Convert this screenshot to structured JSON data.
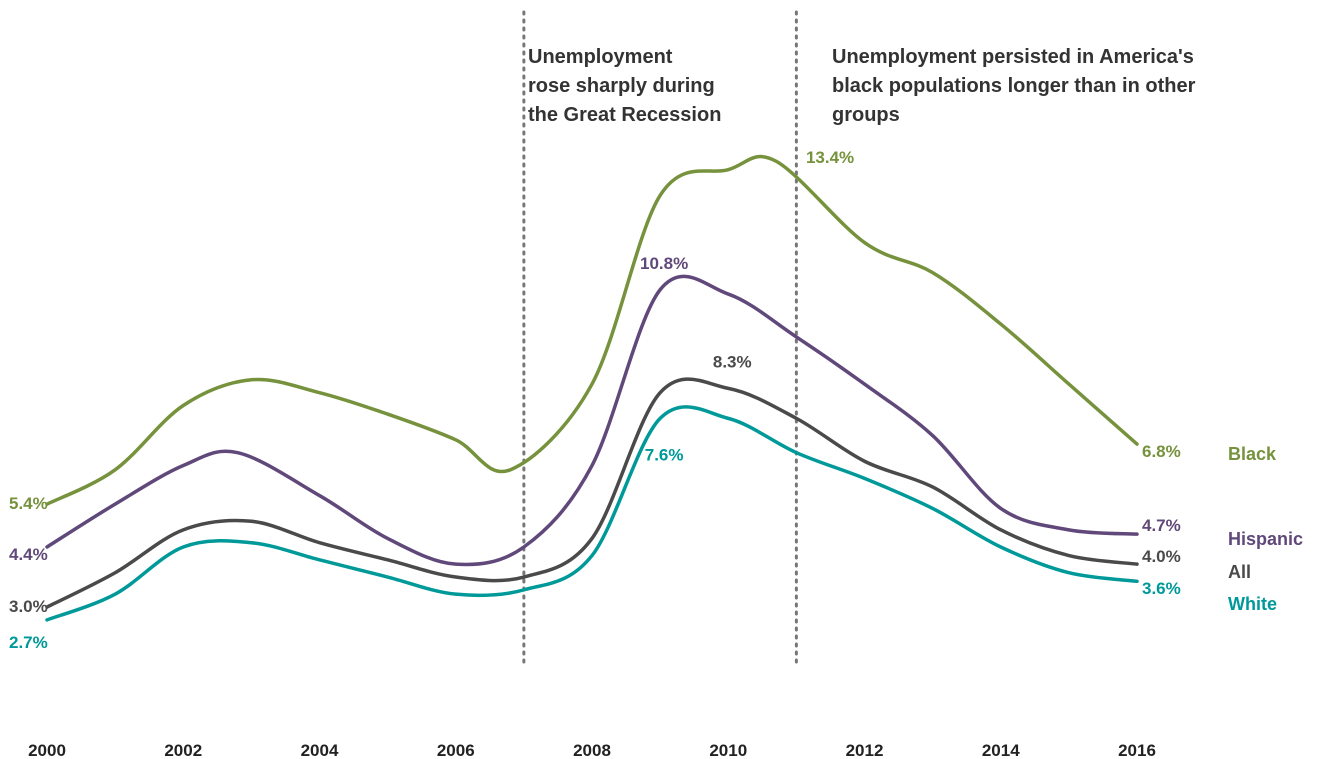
{
  "chart_data": {
    "type": "line",
    "title": "",
    "xlabel": "",
    "ylabel": "",
    "x_ticks": [
      "2000",
      "2002",
      "2004",
      "2006",
      "2008",
      "2010",
      "2012",
      "2014",
      "2016"
    ],
    "xlim": [
      2000,
      2016
    ],
    "grid": false,
    "legend_placement": "right",
    "series": [
      {
        "name": "Black",
        "color": "#76923c",
        "points": [
          [
            2000,
            5.4
          ],
          [
            2001,
            6.2
          ],
          [
            2002,
            7.7
          ],
          [
            2003,
            8.3
          ],
          [
            2004,
            8.0
          ],
          [
            2005,
            7.5
          ],
          [
            2006,
            6.9
          ],
          [
            2006.8,
            6.2
          ],
          [
            2008,
            8.2
          ],
          [
            2009,
            12.6
          ],
          [
            2010,
            13.2
          ],
          [
            2010.7,
            13.4
          ],
          [
            2012,
            11.5
          ],
          [
            2013,
            10.8
          ],
          [
            2014,
            9.6
          ],
          [
            2015,
            8.2
          ],
          [
            2016,
            6.8
          ]
        ],
        "start_label": "5.4%",
        "peak_label": "13.4%",
        "end_label": "6.8%"
      },
      {
        "name": "Hispanic",
        "color": "#60497a",
        "points": [
          [
            2000,
            4.4
          ],
          [
            2001,
            5.4
          ],
          [
            2002,
            6.3
          ],
          [
            2002.8,
            6.6
          ],
          [
            2004,
            5.6
          ],
          [
            2005,
            4.6
          ],
          [
            2006,
            4.0
          ],
          [
            2007,
            4.4
          ],
          [
            2008,
            6.3
          ],
          [
            2009,
            10.4
          ],
          [
            2010,
            10.3
          ],
          [
            2011,
            9.3
          ],
          [
            2012,
            8.2
          ],
          [
            2013,
            7.0
          ],
          [
            2014,
            5.3
          ],
          [
            2015,
            4.8
          ],
          [
            2016,
            4.7
          ]
        ],
        "start_label": "4.4%",
        "peak_label": "10.8%",
        "end_label": "4.7%"
      },
      {
        "name": "All",
        "color": "#4a4a4a",
        "points": [
          [
            2000,
            3.0
          ],
          [
            2001,
            3.8
          ],
          [
            2002,
            4.8
          ],
          [
            2003,
            5.0
          ],
          [
            2004,
            4.5
          ],
          [
            2005,
            4.1
          ],
          [
            2006,
            3.7
          ],
          [
            2007,
            3.7
          ],
          [
            2008,
            4.6
          ],
          [
            2009,
            8.0
          ],
          [
            2010,
            8.1
          ],
          [
            2011,
            7.4
          ],
          [
            2012,
            6.4
          ],
          [
            2013,
            5.8
          ],
          [
            2014,
            4.8
          ],
          [
            2015,
            4.2
          ],
          [
            2016,
            4.0
          ]
        ],
        "start_label": "3.0%",
        "peak_label": "8.3%",
        "end_label": "4.0%"
      },
      {
        "name": "White",
        "color": "#009999",
        "points": [
          [
            2000,
            2.7
          ],
          [
            2001,
            3.3
          ],
          [
            2002,
            4.4
          ],
          [
            2003,
            4.5
          ],
          [
            2004,
            4.1
          ],
          [
            2005,
            3.7
          ],
          [
            2006,
            3.3
          ],
          [
            2007,
            3.4
          ],
          [
            2008,
            4.2
          ],
          [
            2009,
            7.4
          ],
          [
            2010,
            7.4
          ],
          [
            2011,
            6.6
          ],
          [
            2012,
            6.0
          ],
          [
            2013,
            5.3
          ],
          [
            2014,
            4.4
          ],
          [
            2015,
            3.8
          ],
          [
            2016,
            3.6
          ]
        ],
        "start_label": "2.7%",
        "peak_label": "7.6%",
        "end_label": "3.6%"
      }
    ],
    "reference_lines": [
      2007,
      2011
    ],
    "annotations": [
      {
        "lines": [
          "Unemployment",
          "rose  sharply  during",
          "the Great Recession"
        ]
      },
      {
        "lines": [
          "Unemployment persisted in America's",
          "black populations longer than in other",
          "groups"
        ]
      }
    ]
  }
}
